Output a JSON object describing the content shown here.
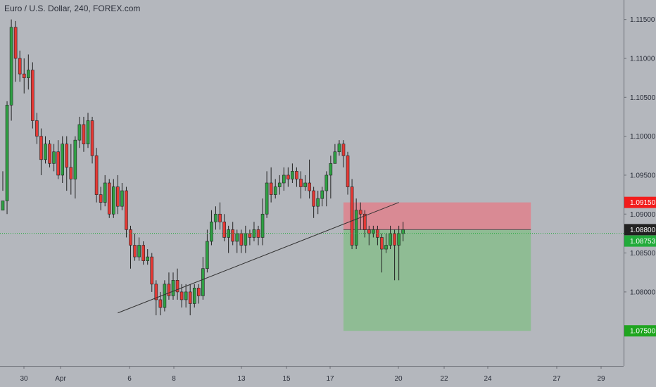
{
  "title": "Euro / U.S. Dollar, 240, FOREX.com",
  "colors": {
    "background": "#b4b7bd",
    "up": "#26a69a",
    "up_body": "#2ea043",
    "down": "#e53935",
    "wick": "#222222",
    "stop_zone": "#d98a94",
    "target_zone": "#8fbc94",
    "stop_tag": "#f21c1c",
    "entry_tag": "#222222",
    "price_tag": "#22ab3b",
    "target_tag": "#1fa51f"
  },
  "chart_data": {
    "type": "candlestick",
    "symbol": "EURUSD",
    "interval": "240",
    "source": "FOREX.com",
    "ylim": [
      1.0705,
      1.1175
    ],
    "y_ticks": [
      "1.11500",
      "1.11000",
      "1.10500",
      "1.10000",
      "1.09500",
      "1.09000",
      "1.08500",
      "1.08000"
    ],
    "y_tick_values": [
      1.115,
      1.11,
      1.105,
      1.1,
      1.095,
      1.09,
      1.085,
      1.08
    ],
    "x_ticks": [
      "30",
      "Apr",
      "6",
      "8",
      "13",
      "15",
      "17",
      "20",
      "22",
      "24",
      "27",
      "29"
    ],
    "current_price": 1.08753,
    "current_price_label": "1.08753",
    "trendline": [
      {
        "bar": 27,
        "price": 1.0773
      },
      {
        "bar": 93,
        "price": 1.0915
      }
    ],
    "short_position": {
      "entry": 1.088,
      "entry_label": "1.08800",
      "stop": 1.0915,
      "stop_label": "1.09150",
      "target": 1.075,
      "target_label": "1.07500",
      "start_bar": 80,
      "end_bar": 124
    },
    "candles": [
      [
        1.0905,
        1.0917,
        1.093,
        1.0955
      ],
      [
        1.0917,
        1.104,
        1.1045,
        1.09
      ],
      [
        1.104,
        1.114,
        1.115,
        1.102
      ],
      [
        1.114,
        1.11,
        1.1148,
        1.107
      ],
      [
        1.11,
        1.108,
        1.111,
        1.107
      ],
      [
        1.108,
        1.1075,
        1.11,
        1.1055
      ],
      [
        1.1075,
        1.1085,
        1.1105,
        1.106
      ],
      [
        1.1085,
        1.102,
        1.1095,
        1.101
      ],
      [
        1.102,
        1.1,
        1.103,
        1.099
      ],
      [
        1.1,
        1.097,
        1.101,
        1.095
      ],
      [
        1.097,
        1.099,
        1.1,
        1.0965
      ],
      [
        1.099,
        1.0965,
        1.0995,
        1.096
      ],
      [
        1.0965,
        1.098,
        1.099,
        1.0955
      ],
      [
        1.098,
        1.095,
        1.0995,
        1.0945
      ],
      [
        1.095,
        1.099,
        1.1,
        1.094
      ],
      [
        1.099,
        1.096,
        1.1,
        1.093
      ],
      [
        1.096,
        1.0945,
        1.099,
        1.0925
      ],
      [
        1.0945,
        1.0995,
        1.1,
        1.092
      ],
      [
        1.0995,
        1.1015,
        1.1025,
        1.0985
      ],
      [
        1.1015,
        1.099,
        1.1025,
        1.098
      ],
      [
        1.099,
        1.102,
        1.103,
        1.0985
      ],
      [
        1.102,
        1.0975,
        1.1025,
        1.0965
      ],
      [
        1.0975,
        1.0925,
        1.0985,
        1.0915
      ],
      [
        1.0925,
        1.0915,
        1.0935,
        1.0905
      ],
      [
        1.0915,
        1.094,
        1.095,
        1.091
      ],
      [
        1.094,
        1.09,
        1.0945,
        1.0895
      ],
      [
        1.09,
        1.0935,
        1.0945,
        1.0895
      ],
      [
        1.0935,
        1.091,
        1.095,
        1.09
      ],
      [
        1.091,
        1.093,
        1.094,
        1.0905
      ],
      [
        1.093,
        1.088,
        1.0935,
        1.087
      ],
      [
        1.088,
        1.086,
        1.0885,
        1.083
      ],
      [
        1.086,
        1.0845,
        1.0875,
        1.084
      ],
      [
        1.0845,
        1.086,
        1.087,
        1.084
      ],
      [
        1.086,
        1.084,
        1.0865,
        1.0835
      ],
      [
        1.084,
        1.0845,
        1.0855,
        1.0835
      ],
      [
        1.0845,
        1.081,
        1.085,
        1.08
      ],
      [
        1.081,
        1.079,
        1.0815,
        1.077
      ],
      [
        1.079,
        1.078,
        1.08,
        1.077
      ],
      [
        1.078,
        1.081,
        1.0815,
        1.0775
      ],
      [
        1.081,
        1.0795,
        1.0825,
        1.079
      ],
      [
        1.0795,
        1.0815,
        1.0825,
        1.079
      ],
      [
        1.0815,
        1.08,
        1.083,
        1.079
      ],
      [
        1.08,
        1.079,
        1.081,
        1.078
      ],
      [
        1.079,
        1.08,
        1.081,
        1.078
      ],
      [
        1.08,
        1.0785,
        1.081,
        1.077
      ],
      [
        1.0785,
        1.0805,
        1.081,
        1.078
      ],
      [
        1.0805,
        1.0795,
        1.081,
        1.0785
      ],
      [
        1.0795,
        1.083,
        1.0845,
        1.079
      ],
      [
        1.083,
        1.0865,
        1.088,
        1.0825
      ],
      [
        1.0865,
        1.089,
        1.0905,
        1.086
      ],
      [
        1.089,
        1.09,
        1.091,
        1.088
      ],
      [
        1.09,
        1.089,
        1.0915,
        1.088
      ],
      [
        1.089,
        1.087,
        1.09,
        1.0865
      ],
      [
        1.087,
        1.088,
        1.0885,
        1.085
      ],
      [
        1.088,
        1.0865,
        1.089,
        1.086
      ],
      [
        1.0865,
        1.0875,
        1.088,
        1.085
      ],
      [
        1.0875,
        1.086,
        1.088,
        1.085
      ],
      [
        1.086,
        1.0875,
        1.0885,
        1.085
      ],
      [
        1.0875,
        1.087,
        1.088,
        1.086
      ],
      [
        1.087,
        1.088,
        1.089,
        1.0865
      ],
      [
        1.088,
        1.087,
        1.0885,
        1.086
      ],
      [
        1.087,
        1.09,
        1.092,
        1.086
      ],
      [
        1.09,
        1.094,
        1.0955,
        1.0895
      ],
      [
        1.094,
        1.0925,
        1.096,
        1.0915
      ],
      [
        1.0925,
        1.0935,
        1.0945,
        1.092
      ],
      [
        1.0935,
        1.094,
        1.095,
        1.0925
      ],
      [
        1.094,
        1.095,
        1.096,
        1.093
      ],
      [
        1.095,
        1.0945,
        1.096,
        1.0935
      ],
      [
        1.0945,
        1.0955,
        1.0965,
        1.094
      ],
      [
        1.0955,
        1.0945,
        1.096,
        1.0935
      ],
      [
        1.0945,
        1.0935,
        1.0955,
        1.092
      ],
      [
        1.0935,
        1.094,
        1.095,
        1.093
      ],
      [
        1.094,
        1.093,
        1.097,
        1.092
      ],
      [
        1.093,
        1.091,
        1.0935,
        1.0895
      ],
      [
        1.091,
        1.092,
        1.093,
        1.09
      ],
      [
        1.092,
        1.093,
        1.0935,
        1.091
      ],
      [
        1.093,
        1.095,
        1.0955,
        1.091
      ],
      [
        1.095,
        1.0965,
        1.0975,
        1.092
      ],
      [
        1.0965,
        1.098,
        1.099,
        1.0965
      ],
      [
        1.098,
        1.099,
        1.0995,
        1.0975
      ],
      [
        1.099,
        1.0975,
        1.0995,
        1.096
      ],
      [
        1.0975,
        1.0935,
        1.098,
        1.0925
      ],
      [
        1.0935,
        1.086,
        1.0945,
        1.0855
      ],
      [
        1.086,
        1.0905,
        1.092,
        1.0855
      ],
      [
        1.0905,
        1.09,
        1.0915,
        1.088
      ],
      [
        1.09,
        1.088,
        1.0905,
        1.087
      ],
      [
        1.088,
        1.0875,
        1.0885,
        1.086
      ],
      [
        1.0875,
        1.088,
        1.0885,
        1.087
      ],
      [
        1.088,
        1.087,
        1.0885,
        1.086
      ],
      [
        1.087,
        1.0855,
        1.0875,
        1.0825
      ],
      [
        1.0855,
        1.086,
        1.0875,
        1.085
      ],
      [
        1.086,
        1.0875,
        1.0885,
        1.0855
      ],
      [
        1.0875,
        1.086,
        1.088,
        1.0815
      ],
      [
        1.086,
        1.0875,
        1.0885,
        1.0815
      ],
      [
        1.0875,
        1.088,
        1.089,
        1.0865
      ]
    ]
  }
}
